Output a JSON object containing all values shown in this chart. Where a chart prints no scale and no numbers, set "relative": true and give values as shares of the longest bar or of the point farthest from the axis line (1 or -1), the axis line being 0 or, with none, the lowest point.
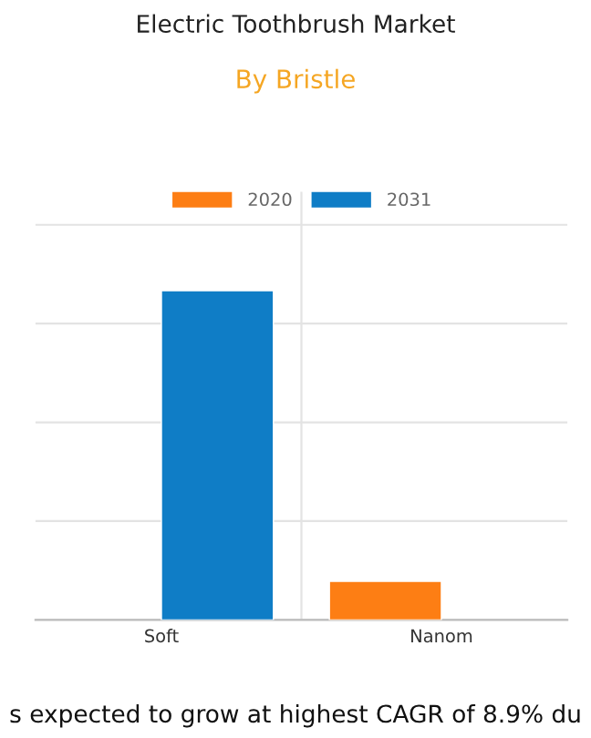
{
  "chart_data": {
    "type": "bar",
    "title": "Electric Toothbrush Market",
    "subtitle": "By Bristle",
    "categories": [
      "Soft",
      "Nanom"
    ],
    "series": [
      {
        "name": "2020",
        "color": "#fd7e14",
        "values": [
          null,
          0.117
        ]
      },
      {
        "name": "2031",
        "color": "#0f7dc6",
        "values": [
          1,
          null
        ]
      }
    ],
    "relative": true,
    "grid": true,
    "legend": "top",
    "annotations": [
      "s expected to grow at highest CAGR of 8.9% du"
    ]
  }
}
